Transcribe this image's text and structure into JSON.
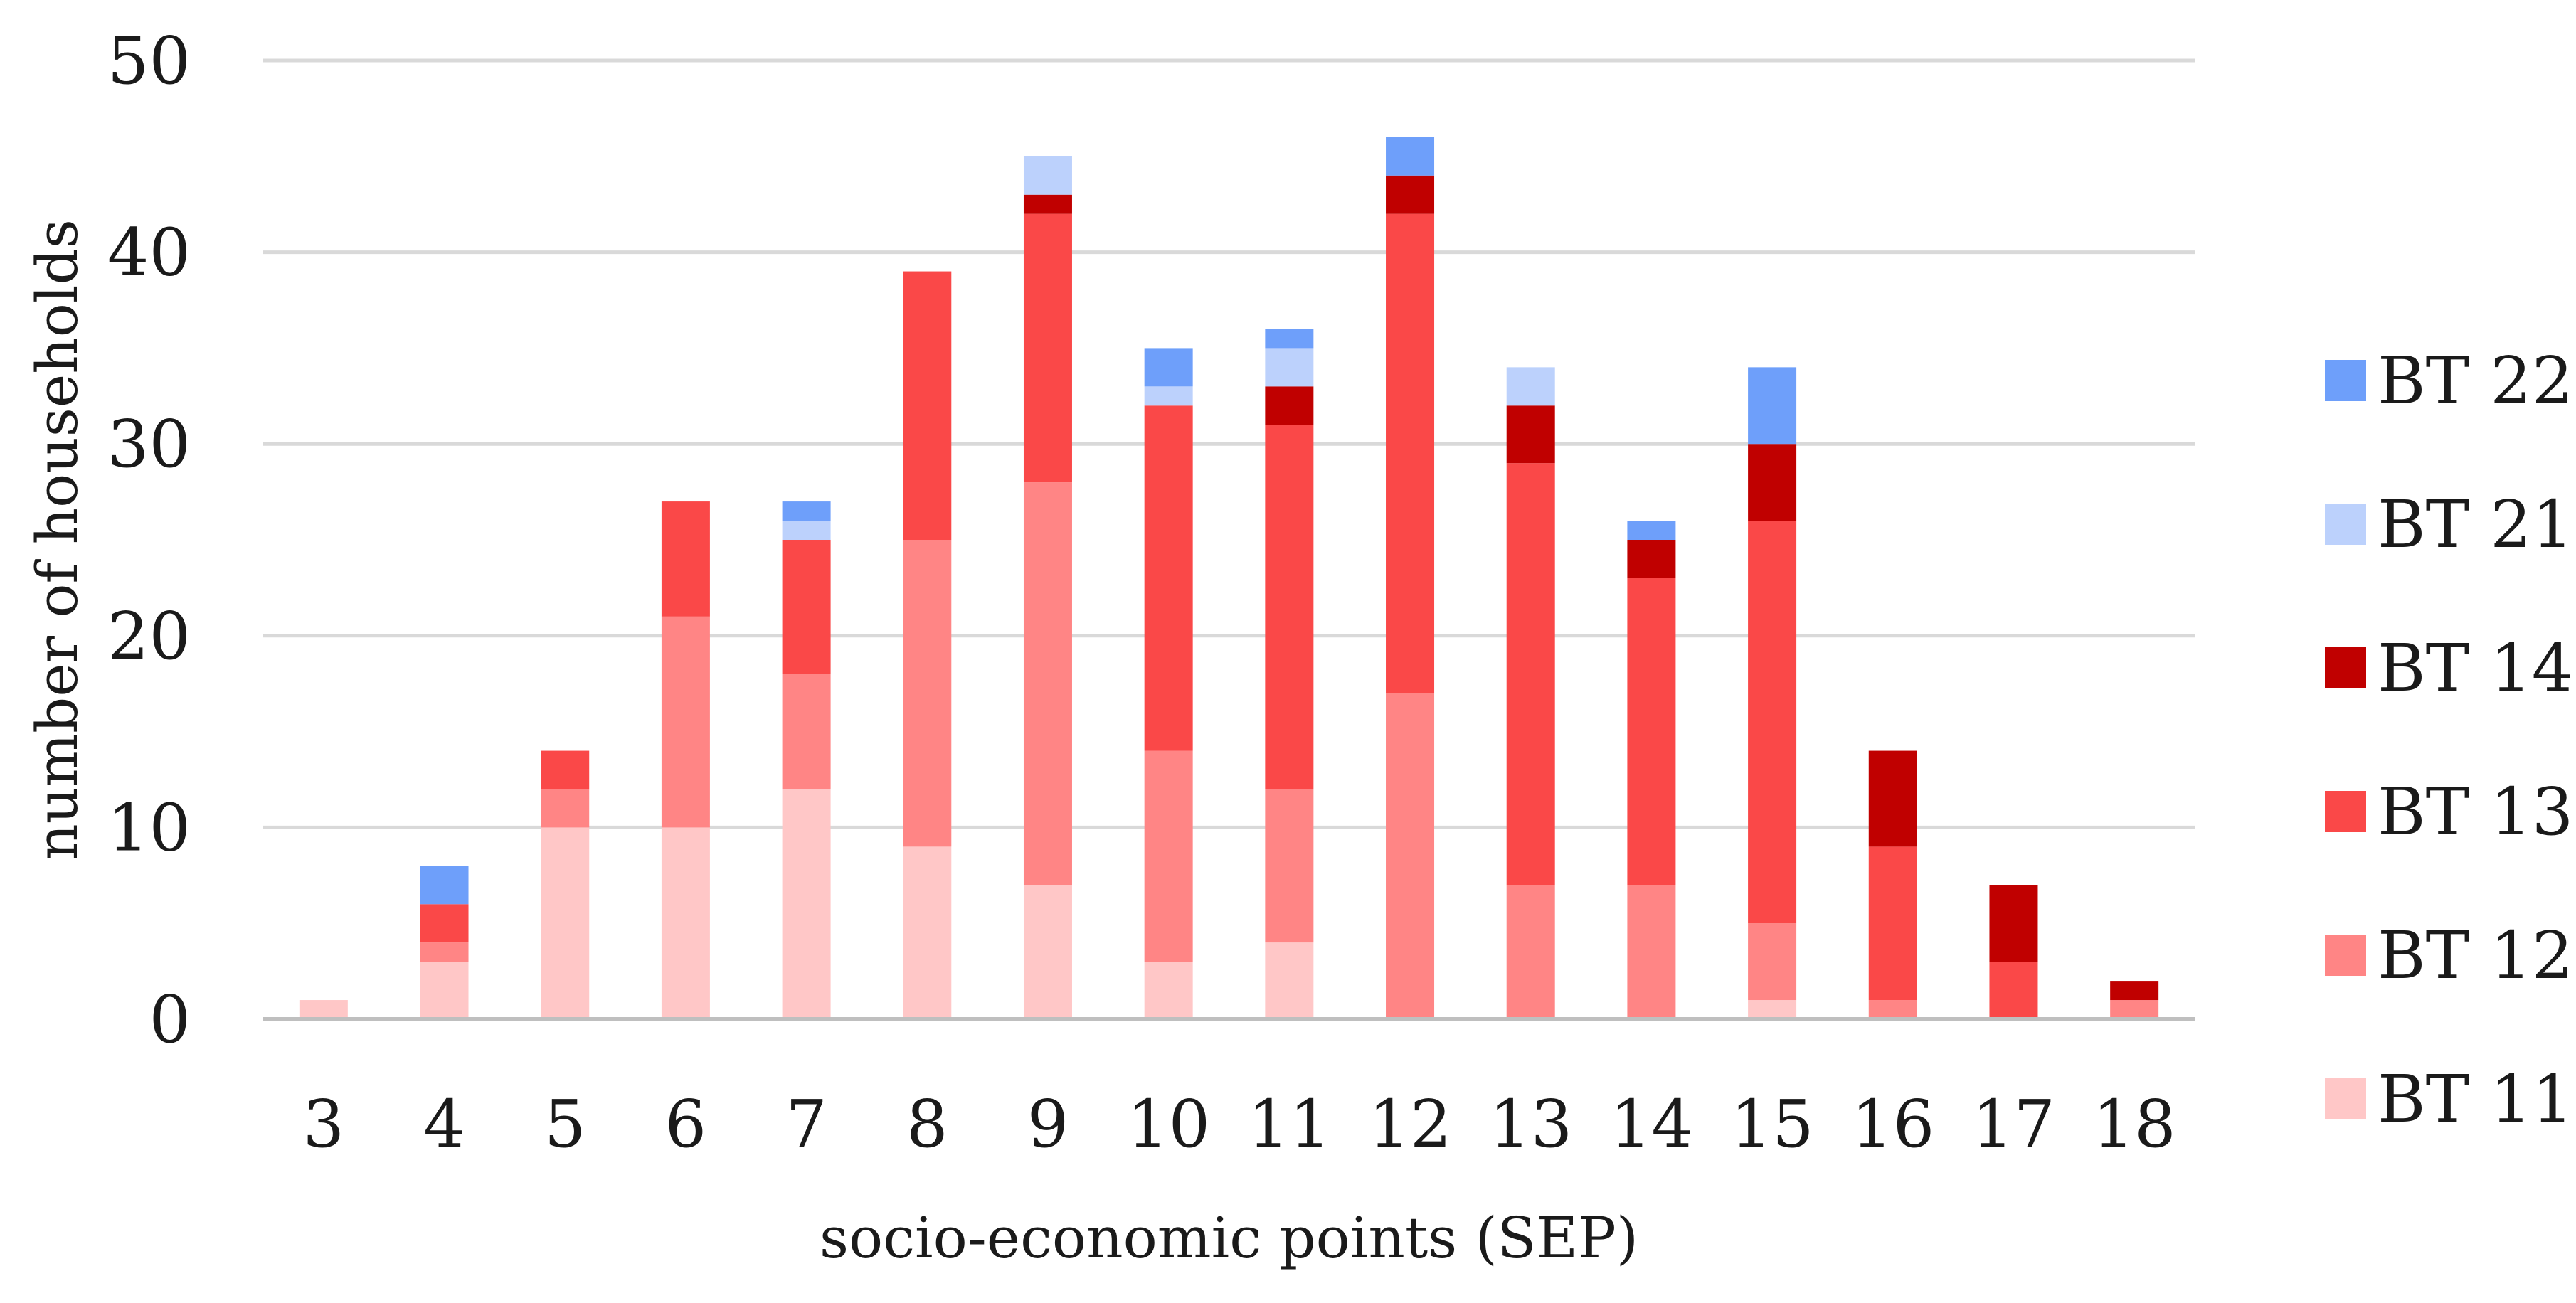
{
  "chart_data": {
    "type": "bar",
    "stacked": true,
    "title": "",
    "xlabel": "socio-economic points (SEP)",
    "ylabel": "number of households",
    "ylim": [
      0,
      50
    ],
    "yticks": [
      0,
      10,
      20,
      30,
      40,
      50
    ],
    "grid": true,
    "legend_position": "right",
    "categories": [
      "3",
      "4",
      "5",
      "6",
      "7",
      "8",
      "9",
      "10",
      "11",
      "12",
      "13",
      "14",
      "15",
      "16",
      "17",
      "18"
    ],
    "series": [
      {
        "name": "BT 11",
        "color": "#ffc7c7",
        "values": [
          1,
          3,
          10,
          10,
          12,
          9,
          7,
          3,
          4,
          0,
          0,
          0,
          1,
          0,
          0,
          0
        ]
      },
      {
        "name": "BT 12",
        "color": "#ff8585",
        "values": [
          0,
          1,
          2,
          11,
          6,
          16,
          21,
          11,
          8,
          17,
          7,
          7,
          4,
          1,
          0,
          1
        ]
      },
      {
        "name": "BT 13",
        "color": "#fa4848",
        "values": [
          0,
          2,
          2,
          6,
          7,
          14,
          14,
          18,
          19,
          25,
          22,
          16,
          21,
          8,
          3,
          0
        ]
      },
      {
        "name": "BT 14",
        "color": "#c00000",
        "values": [
          0,
          0,
          0,
          0,
          0,
          0,
          1,
          0,
          2,
          2,
          3,
          2,
          4,
          5,
          4,
          1
        ]
      },
      {
        "name": "BT 21",
        "color": "#bcd1fc",
        "values": [
          0,
          0,
          0,
          0,
          1,
          0,
          2,
          1,
          2,
          0,
          2,
          0,
          0,
          0,
          0,
          0
        ]
      },
      {
        "name": "BT 22",
        "color": "#6e9ffa",
        "values": [
          0,
          2,
          0,
          0,
          1,
          0,
          0,
          2,
          1,
          2,
          0,
          1,
          4,
          0,
          0,
          0
        ]
      }
    ]
  }
}
